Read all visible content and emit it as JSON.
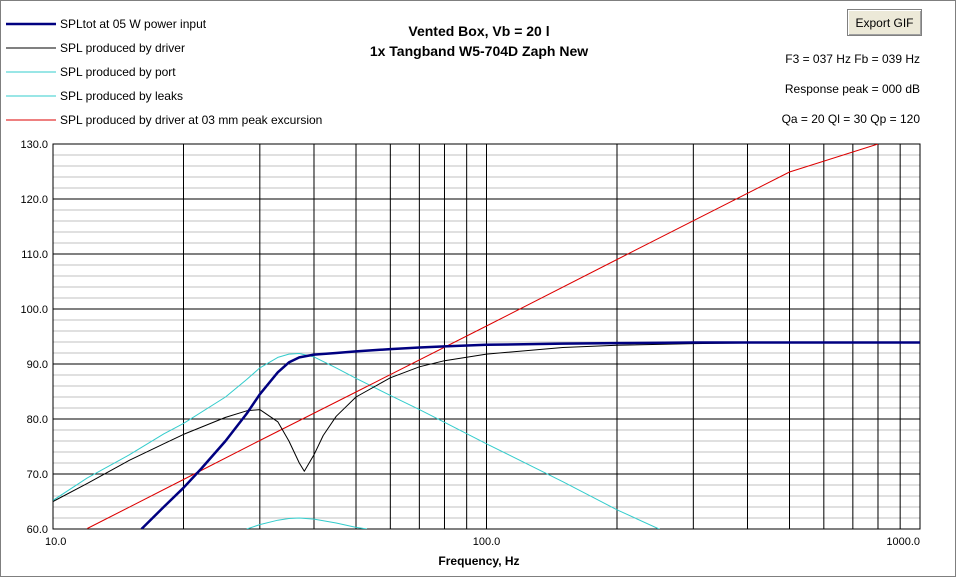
{
  "toolbar": {
    "export_label": "Export GIF"
  },
  "info": {
    "line1": "F3 = 037 Hz  Fb = 039 Hz",
    "line2": "Response peak = 000 dB",
    "line3": "Qa = 20  Ql = 30  Qp = 120"
  },
  "chart_data": {
    "type": "line",
    "title": "Vented Box, Vb = 20 l",
    "subtitle": "1x Tangband W5-704D Zaph New",
    "xlabel": "Frequency, Hz",
    "ylabel": "",
    "xscale": "log",
    "xlim": [
      10,
      1000
    ],
    "ylim": [
      60,
      130
    ],
    "x_ticks": [
      "10.0",
      "100.0",
      "1000.0"
    ],
    "y_ticks": [
      "60.0",
      "70.0",
      "80.0",
      "90.0",
      "100.0",
      "110.0",
      "120.0",
      "130.0"
    ],
    "grid": true,
    "legend_position": "top-left",
    "series": [
      {
        "name": "SPLtot at 05 W power input",
        "color": "#000080",
        "x": [
          16,
          18,
          20,
          22,
          25,
          28,
          30,
          33,
          35,
          37,
          40,
          45,
          50,
          60,
          70,
          80,
          100,
          150,
          200,
          300,
          500,
          1000
        ],
        "y": [
          60,
          64,
          67.5,
          71,
          76,
          81,
          84.5,
          88.5,
          90.3,
          91.2,
          91.7,
          92.0,
          92.3,
          92.7,
          93.0,
          93.2,
          93.5,
          93.7,
          93.8,
          93.9,
          93.9,
          93.9
        ]
      },
      {
        "name": "SPL produced by driver",
        "color": "#000000",
        "x": [
          10,
          12,
          15,
          18,
          20,
          25,
          28,
          30,
          33,
          35,
          37,
          38,
          40,
          42,
          45,
          50,
          60,
          70,
          80,
          100,
          150,
          200,
          300,
          500,
          1000
        ],
        "y": [
          65,
          68.3,
          72.5,
          75.5,
          77.2,
          80.3,
          81.5,
          81.7,
          79.5,
          76.0,
          72.0,
          70.5,
          73.5,
          77.0,
          80.5,
          84.0,
          87.5,
          89.5,
          90.6,
          91.8,
          93.0,
          93.4,
          93.7,
          93.9,
          93.9
        ]
      },
      {
        "name": "SPL produced by port",
        "color": "#33cccc",
        "x": [
          10,
          12,
          15,
          18,
          20,
          25,
          28,
          30,
          33,
          35,
          37,
          40,
          45,
          50,
          60,
          70,
          80,
          100,
          150,
          200,
          250,
          300
        ],
        "y": [
          65.2,
          69.3,
          73.5,
          77.3,
          79.2,
          84.0,
          87.2,
          89.3,
          91.2,
          91.8,
          91.9,
          91.3,
          89.3,
          87.4,
          84.3,
          81.7,
          79.4,
          75.5,
          68.6,
          63.5,
          60,
          57
        ]
      },
      {
        "name": "SPL produced by leaks",
        "color": "#33cccc",
        "x": [
          28,
          30,
          33,
          35,
          37,
          40,
          45,
          50,
          53
        ],
        "y": [
          60.0,
          60.8,
          61.6,
          61.9,
          62.0,
          61.8,
          61.1,
          60.3,
          60.0
        ]
      },
      {
        "name": "SPL produced by driver at 03 mm peak excursion",
        "color": "#dd0000",
        "x": [
          12,
          20,
          30,
          50,
          100,
          200,
          500,
          800
        ],
        "y": [
          60.1,
          69.0,
          76.1,
          84.9,
          96.9,
          109.0,
          124.9,
          130.0
        ]
      }
    ]
  }
}
